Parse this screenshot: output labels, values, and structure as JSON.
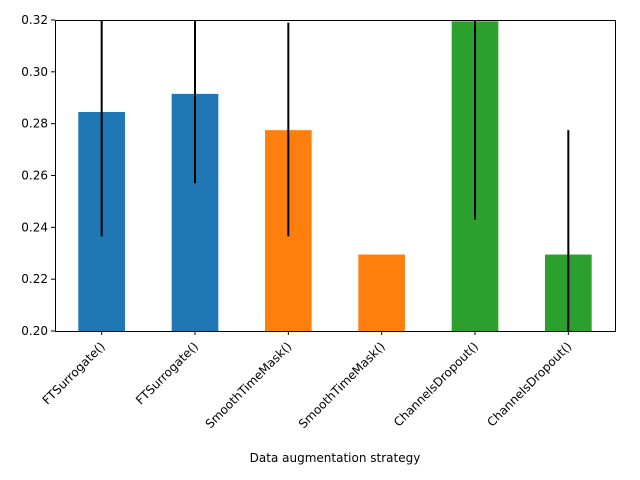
{
  "chart_data": {
    "type": "bar",
    "title": "",
    "xlabel": "Data augmentation strategy",
    "ylabel": "",
    "ylim": [
      0.2,
      0.32
    ],
    "yticks": [
      0.2,
      0.22,
      0.24,
      0.26,
      0.28,
      0.3,
      0.32
    ],
    "ytick_labels": [
      "0.20",
      "0.22",
      "0.24",
      "0.26",
      "0.28",
      "0.30",
      "0.32"
    ],
    "grid": false,
    "legend": "none",
    "categories": [
      "FTSurrogate()",
      "FTSurrogate()",
      "SmoothTimeMask()",
      "SmoothTimeMask()",
      "ChannelsDropout()",
      "ChannelsDropout()"
    ],
    "values": [
      0.2845,
      0.2915,
      0.2775,
      0.2295,
      0.3195,
      0.2295
    ],
    "error_low": [
      0.2365,
      0.257,
      0.2365,
      null,
      0.243,
      0.2
    ],
    "error_high": [
      0.32,
      0.32,
      0.319,
      null,
      0.32,
      0.2775
    ],
    "colors": [
      "#1f77b4",
      "#1f77b4",
      "#ff7f0e",
      "#ff7f0e",
      "#2ca02c",
      "#2ca02c"
    ],
    "errorbar_color": "#000000"
  }
}
